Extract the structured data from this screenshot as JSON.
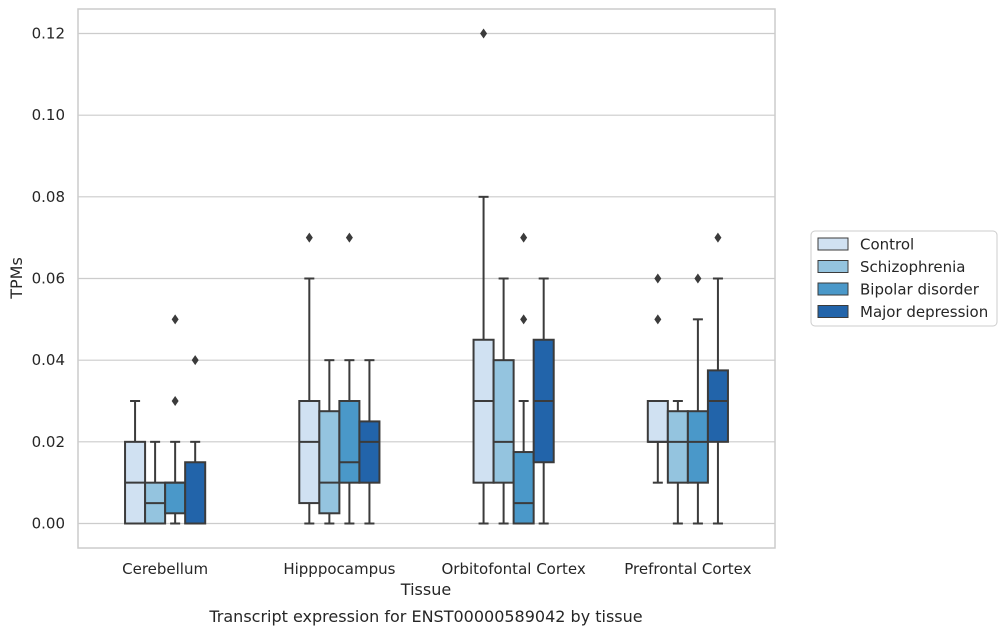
{
  "chart_data": {
    "type": "boxplot",
    "title": "",
    "caption": "Transcript expression for ENST00000589042 by tissue",
    "xlabel": "Tissue",
    "ylabel": "TPMs",
    "ylim": [
      -0.006,
      0.126
    ],
    "yticks": [
      0.0,
      0.02,
      0.04,
      0.06,
      0.08,
      0.1,
      0.12
    ],
    "ytick_labels": [
      "0.00",
      "0.02",
      "0.04",
      "0.06",
      "0.08",
      "0.10",
      "0.12"
    ],
    "grid": "horizontal",
    "legend_position": "right",
    "categories": [
      "Cerebellum",
      "Hipppocampus",
      "Orbitofontal Cortex",
      "Prefrontal Cortex"
    ],
    "series": [
      {
        "name": "Control",
        "color": "#d0e1f2",
        "boxes": [
          {
            "whislo": 0.0,
            "q1": 0.0,
            "med": 0.01,
            "q3": 0.02,
            "whishi": 0.03,
            "fliers": []
          },
          {
            "whislo": 0.0,
            "q1": 0.005,
            "med": 0.02,
            "q3": 0.03,
            "whishi": 0.06,
            "fliers": [
              0.07
            ]
          },
          {
            "whislo": 0.0,
            "q1": 0.01,
            "med": 0.03,
            "q3": 0.045,
            "whishi": 0.08,
            "fliers": [
              0.12
            ]
          },
          {
            "whislo": 0.01,
            "q1": 0.02,
            "med": 0.02,
            "q3": 0.03,
            "whishi": 0.03,
            "fliers": [
              0.05,
              0.06
            ]
          }
        ]
      },
      {
        "name": "Schizophrenia",
        "color": "#94c4df",
        "boxes": [
          {
            "whislo": 0.0,
            "q1": 0.0,
            "med": 0.005,
            "q3": 0.01,
            "whishi": 0.02,
            "fliers": []
          },
          {
            "whislo": 0.0,
            "q1": 0.0025,
            "med": 0.01,
            "q3": 0.0275,
            "whishi": 0.04,
            "fliers": []
          },
          {
            "whislo": 0.0,
            "q1": 0.01,
            "med": 0.02,
            "q3": 0.04,
            "whishi": 0.06,
            "fliers": []
          },
          {
            "whislo": 0.0,
            "q1": 0.01,
            "med": 0.02,
            "q3": 0.0275,
            "whishi": 0.03,
            "fliers": []
          }
        ]
      },
      {
        "name": "Bipolar disorder",
        "color": "#4a98c9",
        "boxes": [
          {
            "whislo": 0.0,
            "q1": 0.0025,
            "med": 0.01,
            "q3": 0.01,
            "whishi": 0.02,
            "fliers": [
              0.03,
              0.05
            ]
          },
          {
            "whislo": 0.0,
            "q1": 0.01,
            "med": 0.015,
            "q3": 0.03,
            "whishi": 0.04,
            "fliers": [
              0.07
            ]
          },
          {
            "whislo": 0.0,
            "q1": 0.0,
            "med": 0.005,
            "q3": 0.0175,
            "whishi": 0.03,
            "fliers": [
              0.05,
              0.07
            ]
          },
          {
            "whislo": 0.0,
            "q1": 0.01,
            "med": 0.02,
            "q3": 0.0275,
            "whishi": 0.05,
            "fliers": [
              0.06
            ]
          }
        ]
      },
      {
        "name": "Major depression",
        "color": "#2264aa",
        "boxes": [
          {
            "whislo": 0.0,
            "q1": 0.0,
            "med": 0.0,
            "q3": 0.015,
            "whishi": 0.02,
            "fliers": [
              0.04
            ]
          },
          {
            "whislo": 0.0,
            "q1": 0.01,
            "med": 0.02,
            "q3": 0.025,
            "whishi": 0.04,
            "fliers": []
          },
          {
            "whislo": 0.0,
            "q1": 0.015,
            "med": 0.03,
            "q3": 0.045,
            "whishi": 0.06,
            "fliers": []
          },
          {
            "whislo": 0.0,
            "q1": 0.02,
            "med": 0.03,
            "q3": 0.0375,
            "whishi": 0.06,
            "fliers": [
              0.07
            ]
          }
        ]
      }
    ]
  }
}
